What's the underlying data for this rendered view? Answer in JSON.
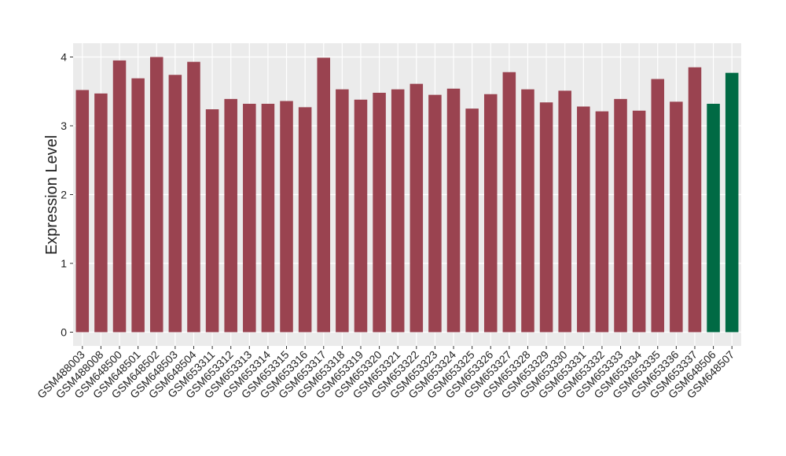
{
  "chart_data": {
    "type": "bar",
    "ylabel": "Expression Level",
    "categories": [
      "GSM488003",
      "GSM488008",
      "GSM648500",
      "GSM648501",
      "GSM648502",
      "GSM648503",
      "GSM648504",
      "GSM653311",
      "GSM653312",
      "GSM653313",
      "GSM653314",
      "GSM653315",
      "GSM653316",
      "GSM653317",
      "GSM653318",
      "GSM653319",
      "GSM653320",
      "GSM653321",
      "GSM653322",
      "GSM653323",
      "GSM653324",
      "GSM653325",
      "GSM653326",
      "GSM653327",
      "GSM653328",
      "GSM653329",
      "GSM653330",
      "GSM653331",
      "GSM653332",
      "GSM653333",
      "GSM653334",
      "GSM653335",
      "GSM653336",
      "GSM653337",
      "GSM648506",
      "GSM648507"
    ],
    "values": [
      3.52,
      3.47,
      3.95,
      3.69,
      4.0,
      3.74,
      3.93,
      3.24,
      3.39,
      3.32,
      3.32,
      3.36,
      3.27,
      3.99,
      3.53,
      3.38,
      3.48,
      3.53,
      3.61,
      3.45,
      3.54,
      3.25,
      3.46,
      3.78,
      3.53,
      3.34,
      3.51,
      3.28,
      3.21,
      3.39,
      3.22,
      3.68,
      3.35,
      3.85,
      3.32,
      3.77
    ],
    "colors": [
      "#9a4350",
      "#9a4350",
      "#9a4350",
      "#9a4350",
      "#9a4350",
      "#9a4350",
      "#9a4350",
      "#9a4350",
      "#9a4350",
      "#9a4350",
      "#9a4350",
      "#9a4350",
      "#9a4350",
      "#9a4350",
      "#9a4350",
      "#9a4350",
      "#9a4350",
      "#9a4350",
      "#9a4350",
      "#9a4350",
      "#9a4350",
      "#9a4350",
      "#9a4350",
      "#9a4350",
      "#9a4350",
      "#9a4350",
      "#9a4350",
      "#9a4350",
      "#9a4350",
      "#9a4350",
      "#9a4350",
      "#9a4350",
      "#9a4350",
      "#9a4350",
      "#006a44",
      "#006a44"
    ],
    "ylim": [
      -0.2,
      4.2
    ],
    "yticks": [
      0,
      1,
      2,
      3,
      4
    ],
    "grid": true
  }
}
